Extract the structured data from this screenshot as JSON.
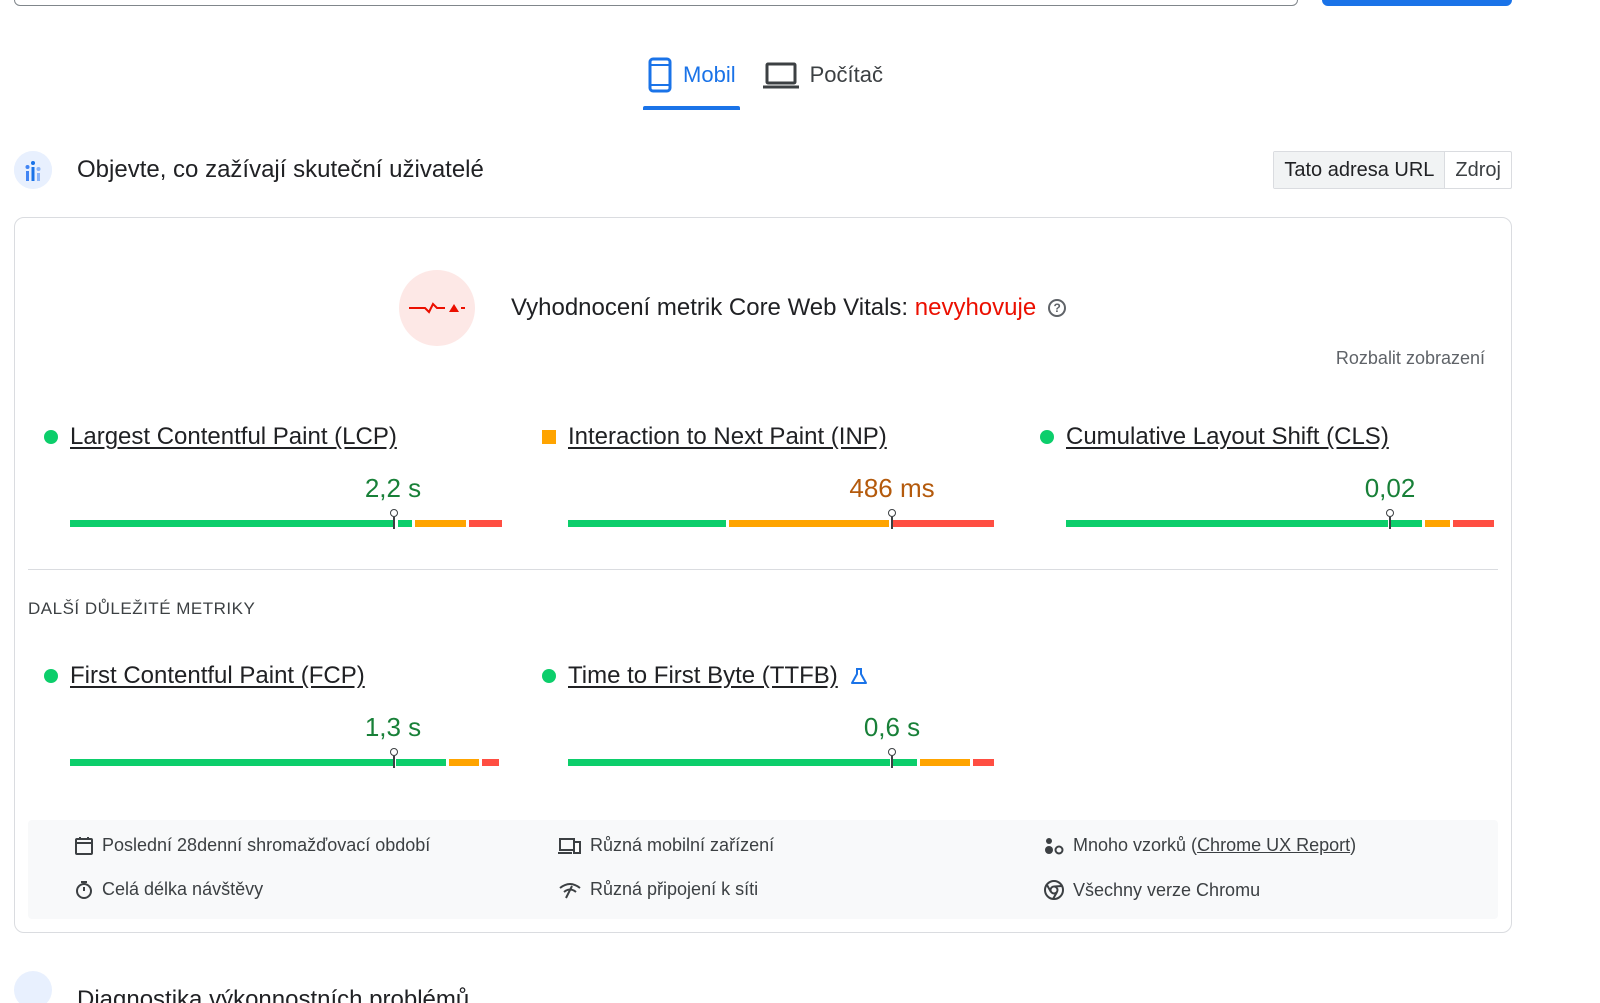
{
  "tabs": [
    {
      "label": "Mobil",
      "icon": "smartphone-icon",
      "active": true
    },
    {
      "label": "Počítač",
      "icon": "laptop-icon",
      "active": false
    }
  ],
  "field_section": {
    "title": "Objevte, co zažívají skuteční uživatelé",
    "toggle": {
      "url": "Tato adresa URL",
      "origin": "Zdroj"
    }
  },
  "assessment": {
    "prefix": "Vyhodnocení metrik Core Web Vitals: ",
    "status": "nevyhovuje",
    "expand_label": "Rozbalit zobrazení"
  },
  "core_metrics": [
    {
      "label": "Largest Contentful Paint (LCP)",
      "value": "2,2 s",
      "rating": "good",
      "marker": "circle"
    },
    {
      "label": "Interaction to Next Paint (INP)",
      "value": "486 ms",
      "rating": "average",
      "marker": "square"
    },
    {
      "label": "Cumulative Layout Shift (CLS)",
      "value": "0,02",
      "rating": "good",
      "marker": "circle"
    }
  ],
  "other_metrics_title": "DALŠÍ DŮLEŽITÉ METRIKY",
  "other_metrics": [
    {
      "label": "First Contentful Paint (FCP)",
      "value": "1,3 s",
      "rating": "good",
      "marker": "circle"
    },
    {
      "label": "Time to First Byte (TTFB)",
      "value": "0,6 s",
      "rating": "good",
      "marker": "circle",
      "experimental_icon": "flask-icon"
    }
  ],
  "info": {
    "period": "Poslední 28denní shromažďovací období",
    "duration": "Celá délka návštěvy",
    "devices": "Různá mobilní zařízení",
    "connections": "Různá připojení k síti",
    "samples_prefix": "Mnoho vzorků (",
    "samples_link": "Chrome UX Report",
    "samples_suffix": ")",
    "chrome": "Všechny verze Chromu"
  },
  "next_section_title": "Diagnostika výkonnostních problémů",
  "colors": {
    "good": "#0cce6b",
    "average": "#ffa400",
    "poor": "#ff4e42",
    "accent": "#1a73e8",
    "fail_text": "#eb0f00"
  }
}
